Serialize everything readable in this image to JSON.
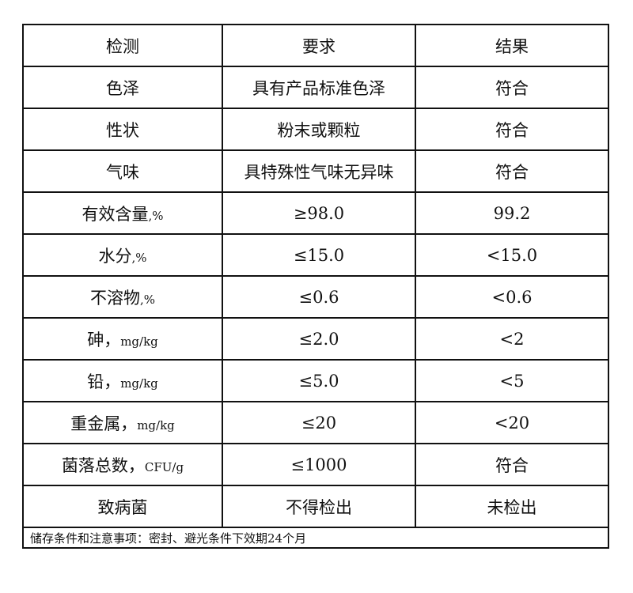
{
  "headers": [
    "检测",
    "要求",
    "结果"
  ],
  "rows": [
    {
      "item": "色泽",
      "unit": "",
      "requirement": "具有产品标准色泽",
      "result": "符合"
    },
    {
      "item": "性状",
      "unit": "",
      "requirement": "粉末或颗粒",
      "result": "符合"
    },
    {
      "item": "气味",
      "unit": "",
      "requirement": "具特殊性气味无异味",
      "result": "符合"
    },
    {
      "item": "有效含量",
      "unit": ",%",
      "requirement": "≥98.0",
      "result": "99.2"
    },
    {
      "item": "水分",
      "unit": ",%",
      "requirement": "≤15.0",
      "result": "<15.0"
    },
    {
      "item": "不溶物",
      "unit": ",%",
      "requirement": "≤0.6",
      "result": "<0.6"
    },
    {
      "item": "砷，",
      "unit": "mg/kg",
      "requirement": "≤2.0",
      "result": "<2"
    },
    {
      "item": "铅，",
      "unit": "mg/kg",
      "requirement": "≤5.0",
      "result": "<5"
    },
    {
      "item": "重金属，",
      "unit": "mg/kg",
      "requirement": "≤20",
      "result": "<20"
    },
    {
      "item": "菌落总数，",
      "unit": "CFU/g",
      "requirement": "≤1000",
      "result": "符合"
    },
    {
      "item": "致病菌",
      "unit": "",
      "requirement": "不得检出",
      "result": "未检出"
    }
  ],
  "footer": "储存条件和注意事项：密封、避光条件下效期24个月"
}
